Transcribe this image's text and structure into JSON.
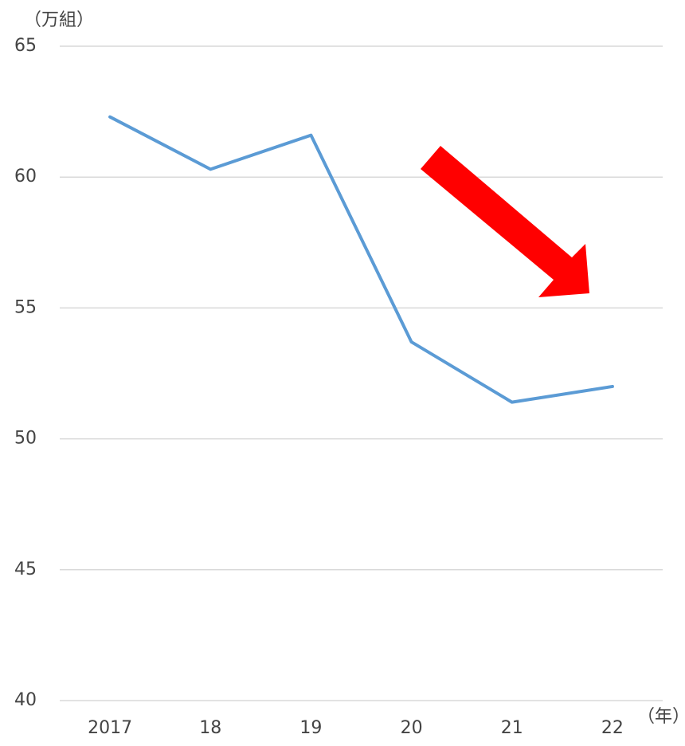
{
  "chart_data": {
    "type": "line",
    "y_label": "（万組）",
    "x_label": "（年）",
    "categories": [
      "2017",
      "18",
      "19",
      "20",
      "21",
      "22"
    ],
    "series": [
      {
        "name": "count",
        "color": "#5b9bd5",
        "values": [
          62.3,
          60.3,
          61.6,
          53.7,
          51.4,
          52.0
        ]
      }
    ],
    "ylim": [
      40,
      65
    ],
    "yticks": [
      40,
      45,
      50,
      55,
      60,
      65
    ],
    "grid": true
  }
}
